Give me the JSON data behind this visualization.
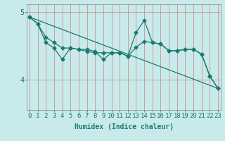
{
  "x": [
    0,
    1,
    2,
    3,
    4,
    5,
    6,
    7,
    8,
    9,
    10,
    11,
    12,
    13,
    14,
    15,
    16,
    17,
    18,
    19,
    20,
    21,
    22,
    23
  ],
  "y_line1": [
    4.93,
    4.83,
    4.63,
    4.55,
    4.47,
    4.47,
    4.45,
    4.45,
    4.42,
    4.3,
    4.4,
    4.4,
    4.35,
    4.7,
    4.88,
    4.55,
    4.53,
    4.43,
    4.43,
    4.45,
    4.45,
    4.38,
    4.05,
    3.87
  ],
  "y_line2": [
    4.93,
    4.83,
    4.55,
    4.47,
    4.3,
    4.47,
    4.45,
    4.42,
    4.4,
    4.4,
    4.4,
    4.4,
    4.35,
    4.48,
    4.57,
    4.55,
    4.53,
    4.43,
    4.43,
    4.45,
    4.45,
    4.38,
    4.05,
    3.87
  ],
  "y_trend_start": 4.93,
  "y_trend_end": 3.87,
  "data_color": "#1a7a6e",
  "bg_color": "#c8eaea",
  "grid_color": "#d08080",
  "xlabel": "Humidex (Indice chaleur)",
  "ytick_labels": [
    "4",
    "5"
  ],
  "ytick_vals": [
    4.0,
    5.0
  ],
  "ylim": [
    3.55,
    5.12
  ],
  "xlim": [
    -0.3,
    23.3
  ],
  "marker_size": 2.5,
  "linewidth": 0.9,
  "xlabel_fontsize": 7,
  "tick_fontsize": 6.5
}
